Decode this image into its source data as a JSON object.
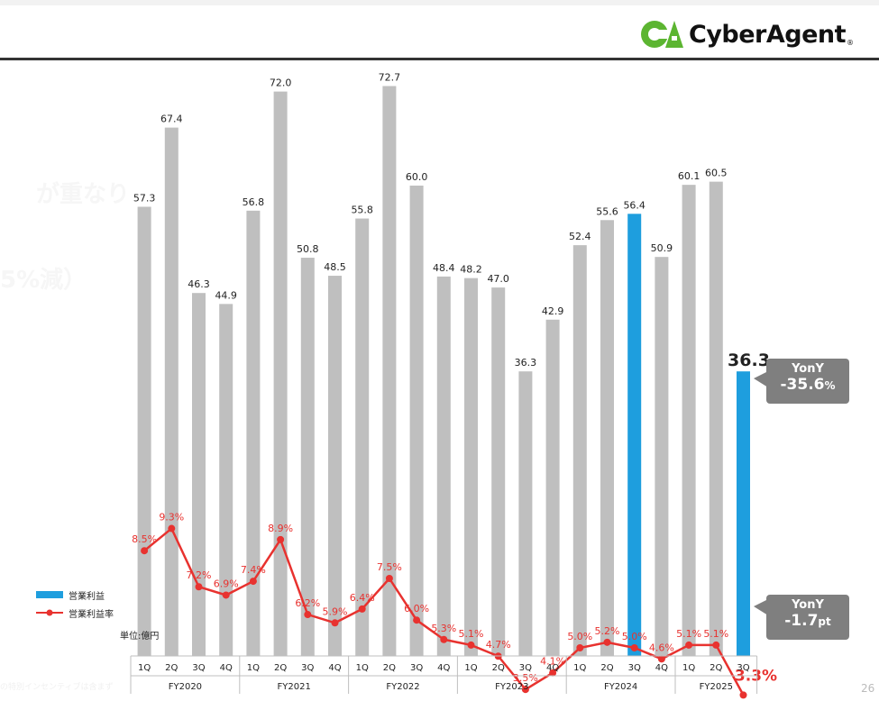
{
  "brand": {
    "name": "CyberAgent",
    "reg_mark": "®",
    "green": "#5cb531",
    "gray": "#231815"
  },
  "ghost_text": [
    "が重なり",
    "5%減）"
  ],
  "legend": {
    "items": [
      {
        "label": "営業利益",
        "kind": "bar",
        "color": "#1e9ede"
      },
      {
        "label": "営業利益率",
        "kind": "line",
        "color": "#e8322f"
      }
    ]
  },
  "unit_label": "単位:億円",
  "footnote": "の特別インセンティブは含まず",
  "page_number": "26",
  "callouts": {
    "profit": {
      "line1": "YonY",
      "line2_value": "-35.6",
      "line2_unit": "%"
    },
    "margin": {
      "line1": "YonY",
      "line2_value": "-1.7",
      "line2_unit": "pt"
    }
  },
  "chart_data": {
    "type": "bar",
    "title": "",
    "ylabel": "",
    "ylim": [
      0,
      80
    ],
    "grid": false,
    "legend_position": "bottom-left",
    "colors": {
      "bar_default": "#bfbfbf",
      "bar_highlight": "#1e9ede",
      "line": "#e8322f",
      "label_text": "#222222",
      "margin_label": "#e8322f"
    },
    "fiscal_years": [
      "FY2020",
      "FY2021",
      "FY2022",
      "FY2023",
      "FY2024",
      "FY2025"
    ],
    "categories": [
      "1Q",
      "2Q",
      "3Q",
      "4Q",
      "1Q",
      "2Q",
      "3Q",
      "4Q",
      "1Q",
      "2Q",
      "3Q",
      "4Q",
      "1Q",
      "2Q",
      "3Q",
      "4Q",
      "1Q",
      "2Q",
      "3Q",
      "4Q",
      "1Q",
      "2Q",
      "3Q"
    ],
    "highlight_indices": [
      18,
      22
    ],
    "series": [
      {
        "name": "営業利益",
        "kind": "bar",
        "values": [
          57.3,
          67.4,
          46.3,
          44.9,
          56.8,
          72.0,
          50.8,
          48.5,
          55.8,
          72.7,
          60.0,
          48.4,
          48.2,
          47.0,
          36.3,
          42.9,
          52.4,
          55.6,
          56.4,
          50.9,
          60.1,
          60.5,
          36.3
        ],
        "labels": [
          "57.3",
          "67.4",
          "46.3",
          "44.9",
          "56.8",
          "72.0",
          "50.8",
          "48.5",
          "55.8",
          "72.7",
          "60.0",
          "48.4",
          "48.2",
          "47.0",
          "36.3",
          "42.9",
          "52.4",
          "55.6",
          "56.4",
          "50.9",
          "60.1",
          "60.5",
          "36.3"
        ]
      },
      {
        "name": "営業利益率",
        "kind": "line",
        "values": [
          8.5,
          9.3,
          7.2,
          6.9,
          7.4,
          8.9,
          6.2,
          5.9,
          6.4,
          7.5,
          6.0,
          5.3,
          5.1,
          4.7,
          3.5,
          4.1,
          5.0,
          5.2,
          5.0,
          4.6,
          5.1,
          5.1,
          3.3
        ],
        "labels": [
          "8.5%",
          "9.3%",
          "7.2%",
          "6.9%",
          "7.4%",
          "8.9%",
          "6.2%",
          "5.9%",
          "6.4%",
          "7.5%",
          "6.0%",
          "5.3%",
          "5.1%",
          "4.7%",
          "3.5%",
          "4.1%",
          "5.0%",
          "5.2%",
          "5.0%",
          "4.6%",
          "5.1%",
          "5.1%",
          "3.3%"
        ]
      }
    ]
  }
}
